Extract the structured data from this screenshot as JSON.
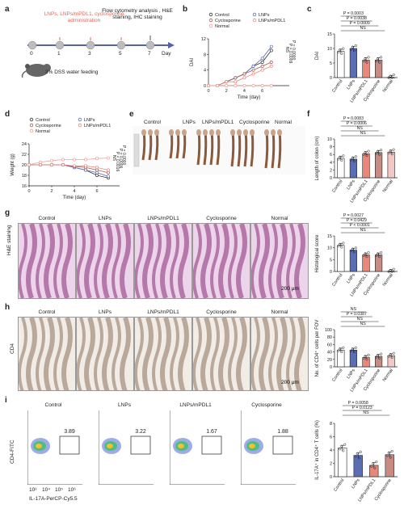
{
  "panels": {
    "a": {
      "label": "a",
      "days": [
        "0",
        "1",
        "3",
        "5",
        "7"
      ],
      "day_label": "Day",
      "admin_text": "LNPs, LNPs/mPDL1, cyclosporine administration",
      "flow_text": "Flow cytometry analysis , H&E staining, IHC staining",
      "dss_text": "3% DSS water feeding"
    },
    "b": {
      "label": "b"
    },
    "c": {
      "label": "c"
    },
    "d": {
      "label": "d"
    },
    "e": {
      "label": "e",
      "groups": [
        "Control",
        "LNPs",
        "LNPs/mPDL1",
        "Cyclosporine",
        "Normal"
      ]
    },
    "f": {
      "label": "f"
    },
    "g": {
      "label": "g",
      "row_label": "H&E staining",
      "groups": [
        "Control",
        "LNPs",
        "LNPs/mPDL1",
        "Cyclosporine",
        "Normal"
      ],
      "scale": "200 μm"
    },
    "h": {
      "label": "h",
      "row_label": "CD4",
      "groups": [
        "Control",
        "LNPs",
        "LNPs/mPDL1",
        "Cyclosporine",
        "Normal"
      ],
      "scale": "200 μm"
    },
    "i": {
      "label": "i",
      "groups": [
        "Control",
        "LNPs",
        "LNPs/mPDL1",
        "Cyclosporine"
      ],
      "gate_values": [
        "3.89",
        "3.22",
        "1.67",
        "1.88"
      ],
      "ylabel": "CD4-FITC",
      "xlabel": "IL-17A-PerCP-Cy5.5",
      "ticks": [
        "10³",
        "10⁴",
        "10⁵",
        "10⁶"
      ]
    }
  },
  "colors": {
    "control": "#ffffff",
    "lnps": "#5a6fb3",
    "lnps_mpdl1": "#e8877a",
    "cyclosporine": "#c98a84",
    "normal": "#f3c8c4",
    "accent": "#4a5fa8"
  },
  "chart_data": [
    {
      "panel": "b",
      "type": "line",
      "xlabel": "Time (day)",
      "ylabel": "DAI",
      "xlim": [
        0,
        9
      ],
      "ylim": [
        0,
        12
      ],
      "xticks": [
        0,
        2,
        4,
        6
      ],
      "yticks": [
        0,
        4,
        8,
        12
      ],
      "x": [
        0,
        1,
        2,
        3,
        4,
        5,
        6,
        7
      ],
      "series": [
        {
          "name": "Control",
          "values": [
            0,
            0,
            1,
            2,
            3,
            5,
            6,
            9
          ]
        },
        {
          "name": "LNPs",
          "values": [
            0,
            0,
            1,
            2,
            3,
            5,
            7,
            10
          ]
        },
        {
          "name": "Cyclosporine",
          "values": [
            0,
            0,
            1,
            2,
            3,
            4,
            5,
            6
          ]
        },
        {
          "name": "LNPs/mPDL1",
          "values": [
            0,
            0,
            1,
            1,
            2,
            3,
            4,
            5
          ]
        },
        {
          "name": "Normal",
          "values": [
            0,
            0,
            0,
            0,
            0,
            0,
            0,
            0
          ]
        }
      ],
      "annotations": [
        "P = 0.0000",
        "P = 0.0009",
        "NS"
      ]
    },
    {
      "panel": "c",
      "type": "bar",
      "ylabel": "DAI",
      "categories": [
        "Control",
        "LNPs",
        "LNPs/mPDL1",
        "Cyclosporine",
        "Normal"
      ],
      "values": [
        9,
        10,
        6,
        6,
        0
      ],
      "ylim": [
        0,
        15
      ],
      "yticks": [
        0,
        5,
        10,
        15
      ],
      "annotations": [
        "P = 0.0003",
        "P = 0.0038",
        "P = 0.0009",
        "NS"
      ]
    },
    {
      "panel": "d",
      "type": "line",
      "xlabel": "Time (day)",
      "ylabel": "Weight (g)",
      "xlim": [
        0,
        8
      ],
      "ylim": [
        16,
        24
      ],
      "xticks": [
        0,
        2,
        4,
        6
      ],
      "yticks": [
        16,
        18,
        20,
        22,
        24
      ],
      "x": [
        0,
        1,
        2,
        3,
        4,
        5,
        6,
        7
      ],
      "series": [
        {
          "name": "Control",
          "values": [
            20,
            20,
            20,
            20,
            19.5,
            19,
            18,
            17.5
          ]
        },
        {
          "name": "LNPs",
          "values": [
            20,
            20,
            20,
            20,
            19.5,
            19,
            18.5,
            17.8
          ]
        },
        {
          "name": "Cyclosporine",
          "values": [
            20,
            20,
            20,
            20,
            19.7,
            19.5,
            19,
            18.5
          ]
        },
        {
          "name": "LNPs/mPDL1",
          "values": [
            20,
            20,
            20,
            20,
            19.8,
            19.8,
            19.5,
            19
          ]
        },
        {
          "name": "Normal",
          "values": [
            20,
            20.5,
            20.8,
            21,
            21,
            21,
            21.2,
            21.3
          ]
        }
      ],
      "annotations": [
        "P = 0.0000",
        "P = 0.0006",
        "P = 0.0016",
        "NS"
      ]
    },
    {
      "panel": "f",
      "type": "bar",
      "ylabel": "Length of colon (cm)",
      "categories": [
        "Control",
        "LNPs",
        "LNPs/mPDL1",
        "Cyclosporine",
        "Normal"
      ],
      "values": [
        5.0,
        4.8,
        6.2,
        6.5,
        6.6
      ],
      "ylim": [
        0,
        10
      ],
      "yticks": [
        0,
        2,
        4,
        6,
        8,
        10
      ],
      "annotations": [
        "P = 0.0083",
        "P = 0.0006",
        "NS",
        "NS"
      ]
    },
    {
      "panel": "g",
      "type": "bar",
      "ylabel": "Histological score",
      "categories": [
        "Control",
        "LNPs",
        "LNPs/mPDL1",
        "Cyclosporine",
        "Normal"
      ],
      "values": [
        11,
        9,
        7,
        7,
        0
      ],
      "ylim": [
        0,
        15
      ],
      "yticks": [
        0,
        5,
        10,
        15
      ],
      "annotations": [
        "P = 0.0027",
        "P = 0.0429",
        "P < 0.0001",
        "NS"
      ]
    },
    {
      "panel": "h",
      "type": "bar",
      "ylabel": "No. of CD4⁺ cells per FOV",
      "categories": [
        "Control",
        "LNPs",
        "LNPs/mPDL1",
        "Cyclosporine",
        "Normal"
      ],
      "values": [
        45,
        45,
        25,
        28,
        30
      ],
      "ylim": [
        0,
        100
      ],
      "yticks": [
        0,
        20,
        40,
        60,
        80,
        100
      ],
      "annotations": [
        "NS",
        "P = 0.0387",
        "NS",
        "NS"
      ]
    },
    {
      "panel": "i",
      "type": "bar",
      "ylabel": "IL-17A⁺ in CD4⁺ T cells (%)",
      "categories": [
        "Control",
        "LNPs",
        "LNPs/mPDL1",
        "Cyclosporine"
      ],
      "values": [
        4.3,
        3.2,
        1.7,
        3.3
      ],
      "ylim": [
        0,
        8
      ],
      "yticks": [
        0,
        2,
        4,
        6,
        8
      ],
      "annotations": [
        "P = 0.0058",
        "P = 0.0123",
        "NS"
      ]
    }
  ]
}
